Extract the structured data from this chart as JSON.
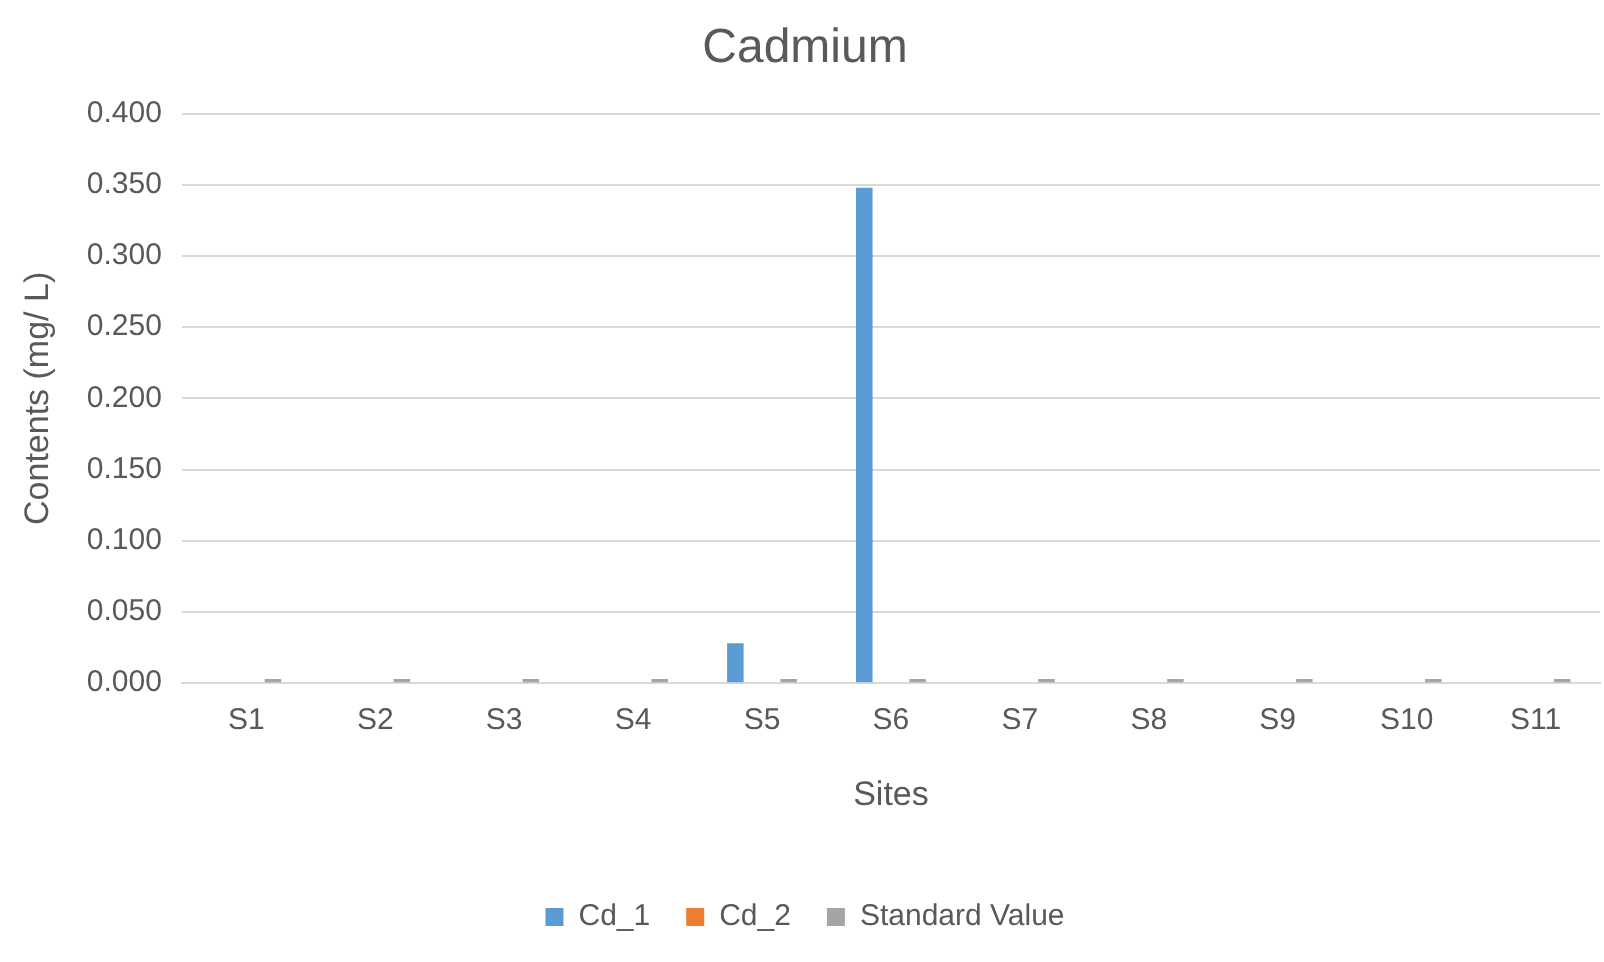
{
  "chart_data": {
    "type": "bar",
    "title": "Cadmium",
    "xlabel": "Sites",
    "ylabel": "Contents (mg/ L)",
    "categories": [
      "S1",
      "S2",
      "S3",
      "S4",
      "S5",
      "S6",
      "S7",
      "S8",
      "S9",
      "S10",
      "S11"
    ],
    "series": [
      {
        "name": "Cd_1",
        "color": "#5b9bd5",
        "values": [
          0,
          0,
          0,
          0,
          0.028,
          0.348,
          0,
          0,
          0,
          0,
          0
        ]
      },
      {
        "name": "Cd_2",
        "color": "#ed7d31",
        "values": [
          0,
          0,
          0,
          0,
          0,
          0,
          0,
          0,
          0,
          0,
          0
        ]
      },
      {
        "name": "Standard Value",
        "color": "#a5a5a5",
        "values": [
          0.003,
          0.003,
          0.003,
          0.003,
          0.003,
          0.003,
          0.003,
          0.003,
          0.003,
          0.003,
          0.003
        ]
      }
    ],
    "ylim": [
      0,
      0.4
    ],
    "yticks": [
      {
        "value": 0,
        "label": "0.000"
      },
      {
        "value": 0.05,
        "label": "0.050"
      },
      {
        "value": 0.1,
        "label": "0.100"
      },
      {
        "value": 0.15,
        "label": "0.150"
      },
      {
        "value": 0.2,
        "label": "0.200"
      },
      {
        "value": 0.25,
        "label": "0.250"
      },
      {
        "value": 0.3,
        "label": "0.300"
      },
      {
        "value": 0.35,
        "label": "0.350"
      },
      {
        "value": 0.4,
        "label": "0.400"
      }
    ],
    "grid": "y",
    "legend": "bottom"
  }
}
